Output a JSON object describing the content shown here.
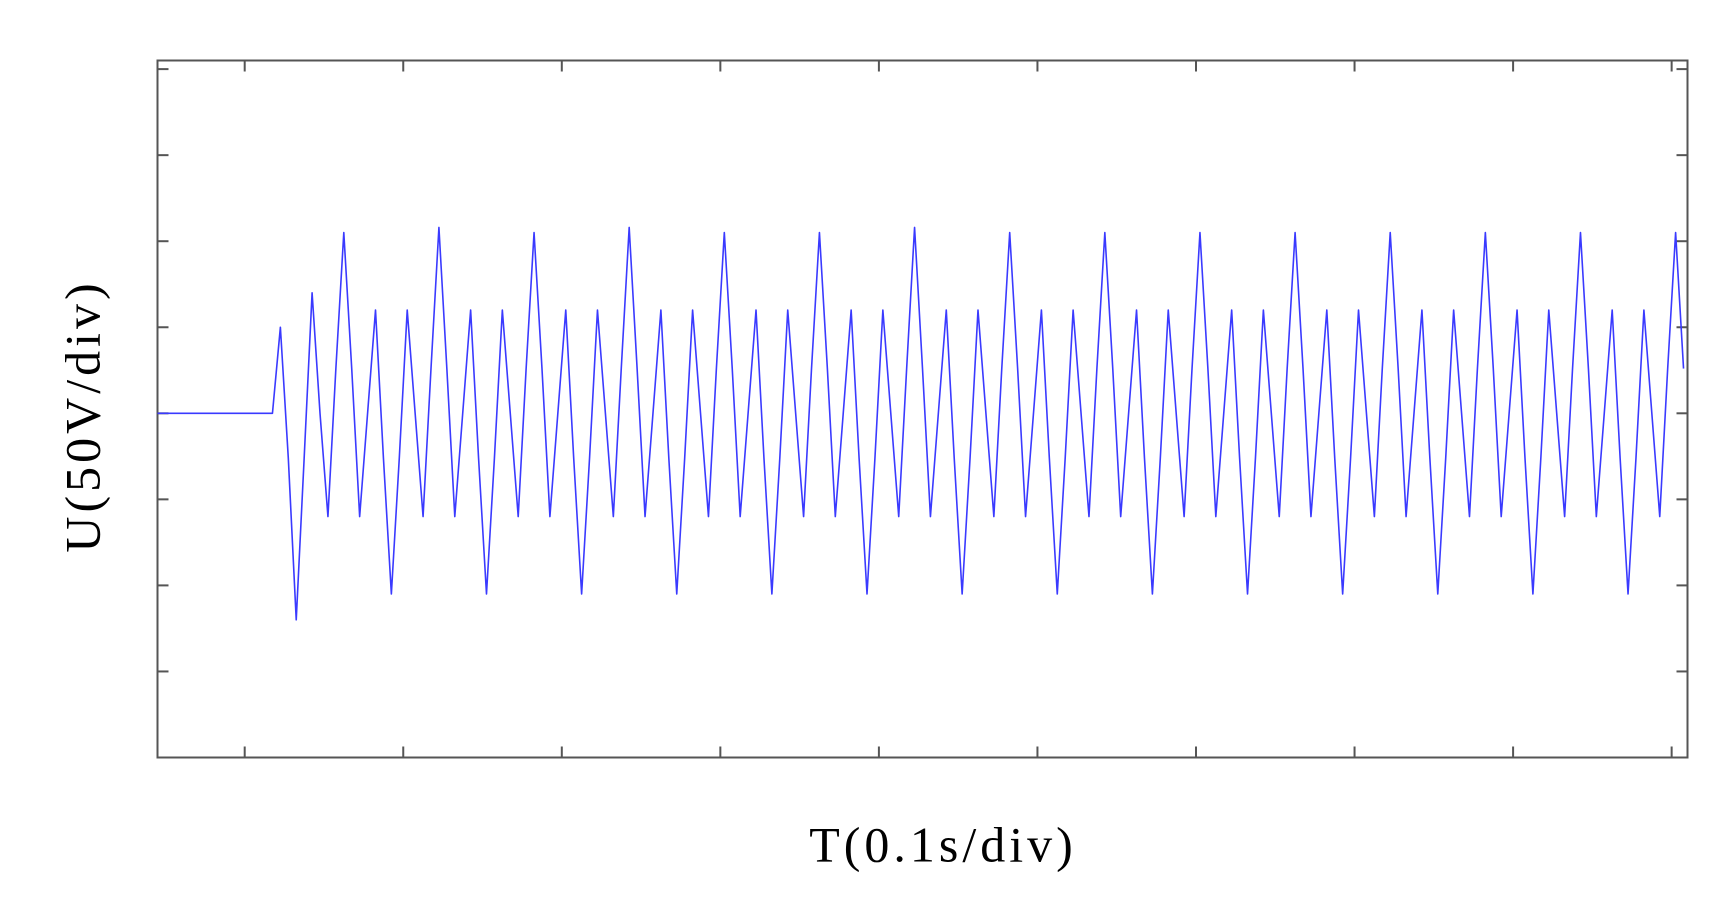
{
  "chart_data": {
    "type": "line",
    "x_label": "T(0.1s/div)",
    "y_label": "U(50V/div)",
    "color": "#3a3aff",
    "xlim": [
      0,
      0.965
    ],
    "ylim": [
      -200,
      205
    ],
    "xticks": [
      0.055,
      0.155,
      0.255,
      0.355,
      0.455,
      0.555,
      0.655,
      0.755,
      0.855,
      0.955
    ],
    "yticks": [
      -200,
      -150,
      -100,
      -50,
      0,
      50,
      100,
      150,
      200
    ],
    "x": [
      0,
      0.0725,
      0.0775,
      0.0825,
      0.0875,
      0.0925,
      0.0975,
      0.1025,
      0.1075,
      0.1125,
      0.1175,
      0.1225,
      0.1275,
      0.1325,
      0.1375,
      0.1425,
      0.1475,
      0.1525,
      0.1575,
      0.1625,
      0.1675,
      0.1725,
      0.1775,
      0.1825,
      0.1875,
      0.1925,
      0.1975,
      0.2025,
      0.2075,
      0.2125,
      0.2175,
      0.2225,
      0.2275,
      0.2325,
      0.2375,
      0.2425,
      0.2475,
      0.2525,
      0.2575,
      0.2625,
      0.2675,
      0.2725,
      0.2775,
      0.2825,
      0.2875,
      0.2925,
      0.2975,
      0.3025,
      0.3075,
      0.3125,
      0.3175,
      0.3225,
      0.3275,
      0.3325,
      0.3375,
      0.3425,
      0.3475,
      0.3525,
      0.3575,
      0.3625,
      0.3675,
      0.3725,
      0.3775,
      0.3825,
      0.3875,
      0.3925,
      0.3975,
      0.4025,
      0.4075,
      0.4125,
      0.4175,
      0.4225,
      0.4275,
      0.4325,
      0.4375,
      0.4425,
      0.4475,
      0.4525,
      0.4575,
      0.4625,
      0.4675,
      0.4725,
      0.4775,
      0.4825,
      0.4875,
      0.4925,
      0.4975,
      0.5025,
      0.5075,
      0.5125,
      0.5175,
      0.5225,
      0.5275,
      0.5325,
      0.5375,
      0.5425,
      0.5475,
      0.5525,
      0.5575,
      0.5625,
      0.5675,
      0.5725,
      0.5775,
      0.5825,
      0.5875,
      0.5925,
      0.5975,
      0.6025,
      0.6075,
      0.6125,
      0.6175,
      0.6225,
      0.6275,
      0.6325,
      0.6375,
      0.6425,
      0.6475,
      0.6525,
      0.6575,
      0.6625,
      0.6675,
      0.6725,
      0.6775,
      0.6825,
      0.6875,
      0.6925,
      0.6975,
      0.7025,
      0.7075,
      0.7125,
      0.7175,
      0.7225,
      0.7275,
      0.7325,
      0.7375,
      0.7425,
      0.7475,
      0.7525,
      0.7575,
      0.7625,
      0.7675,
      0.7725,
      0.7775,
      0.7825,
      0.7875,
      0.7925,
      0.7975,
      0.8025,
      0.8075,
      0.8125,
      0.8175,
      0.8225,
      0.8275,
      0.8325,
      0.8375,
      0.8425,
      0.8475,
      0.8525,
      0.8575,
      0.8625,
      0.8675,
      0.8725,
      0.8775,
      0.8825,
      0.8875,
      0.8925,
      0.8975,
      0.9025,
      0.9075,
      0.9125,
      0.9175,
      0.9225,
      0.9275,
      0.9325,
      0.9375,
      0.9425,
      0.9475,
      0.9525,
      0.9575,
      0.9625
    ],
    "values": [
      0,
      0,
      50,
      -26,
      -120,
      -26,
      70,
      0,
      -60,
      26,
      105,
      26,
      -60,
      0,
      60,
      -26,
      -105,
      -26,
      60,
      0,
      -60,
      26,
      108,
      26,
      -60,
      0,
      60,
      -26,
      -105,
      -26,
      60,
      0,
      -60,
      26,
      105,
      26,
      -60,
      0,
      60,
      -26,
      -105,
      -26,
      60,
      0,
      -60,
      26,
      108,
      26,
      -60,
      0,
      60,
      -26,
      -105,
      -26,
      60,
      0,
      -60,
      26,
      105,
      26,
      -60,
      0,
      60,
      -26,
      -105,
      -26,
      60,
      0,
      -60,
      26,
      105,
      26,
      -60,
      0,
      60,
      -26,
      -105,
      -26,
      60,
      0,
      -60,
      26,
      108,
      26,
      -60,
      0,
      60,
      -26,
      -105,
      -26,
      60,
      0,
      -60,
      26,
      105,
      26,
      -60,
      0,
      60,
      -26,
      -105,
      -26,
      60,
      0,
      -60,
      26,
      105,
      26,
      -60,
      0,
      60,
      -26,
      -105,
      -26,
      60,
      0,
      -60,
      26,
      105,
      26,
      -60,
      0,
      60,
      -26,
      -105,
      -26,
      60,
      0,
      -60,
      26,
      105,
      26,
      -60,
      0,
      60,
      -26,
      -105,
      -26,
      60,
      0,
      -60,
      26,
      105,
      26,
      -60,
      0,
      60,
      -26,
      -105,
      -26,
      60,
      0,
      -60,
      26,
      105,
      26,
      -60,
      0,
      60,
      -26,
      -105,
      -26,
      60,
      0,
      -60,
      26,
      105,
      26,
      -60,
      0,
      60,
      -26,
      -105,
      -26,
      60,
      0,
      -60,
      26,
      105,
      26
    ]
  }
}
